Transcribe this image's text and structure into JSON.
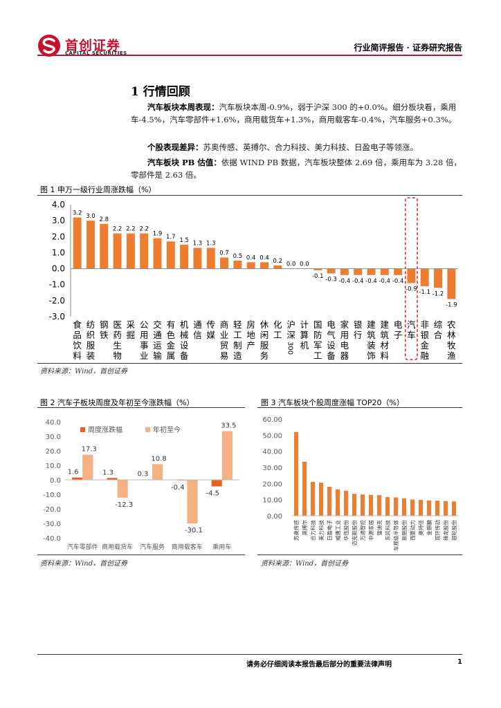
{
  "header": {
    "logo_cn": "首创证券",
    "logo_en": "CAPITAL SECURITIES",
    "report_type": "行业简评报告 · 证券研究报告"
  },
  "section": {
    "title": "1 行情回顾",
    "paragraphs": [
      {
        "lead": "汽车板块本周表现：",
        "text": "汽车板块本周-0.9%，弱于沪深 300 的+0.0%。细分板块看，乘用车-4.5%，汽车零部件+1.6%，商用载货车+1.3%，商用载客车-0.4%，汽车服务+0.3%。"
      },
      {
        "lead": "个股表现差异：",
        "text": "苏奥传感、英搏尔、合力科技、美力科技、日盈电子等领涨。"
      },
      {
        "lead": "汽车板块 PB 估值：",
        "text": "依据 WIND PB 数据，汽车板块整体 2.69 倍，乘用车为 3.28 倍，零部件是 2.63 倍。"
      }
    ]
  },
  "figures": {
    "fig1_caption": "图 1 申万一级行业周涨跌幅（%）",
    "fig2_caption": "图 2 汽车子板块周度及年初至今涨跌幅（%）",
    "fig3_caption": "图 3 汽车板块个股周度涨幅 TOP20（%）",
    "source": "资料来源：Wind，首创证券"
  },
  "chart_data": [
    {
      "type": "bar",
      "categories": [
        "食品饮料",
        "纺织服装",
        "钢铁",
        "医药生物",
        "采掘",
        "公用事业",
        "交通运输",
        "有色金属",
        "机械设备",
        "通信",
        "传媒",
        "商业贸易",
        "轻工制造",
        "房地产",
        "休闲服务",
        "化工",
        "沪深300",
        "计算机",
        "国防军工",
        "电气设备",
        "家用电器",
        "银行",
        "建筑装饰",
        "建筑材料",
        "电子",
        "汽车",
        "非银金融",
        "综合",
        "农林牧渔"
      ],
      "values": [
        3.2,
        3.0,
        2.8,
        2.2,
        2.2,
        2.2,
        1.9,
        1.7,
        1.5,
        1.3,
        1.3,
        0.7,
        0.5,
        0.4,
        0.4,
        0.2,
        0.0,
        0.0,
        -0.1,
        -0.3,
        -0.4,
        -0.4,
        -0.4,
        -0.4,
        -0.4,
        -0.9,
        -1.1,
        -1.2,
        -1.9
      ],
      "highlight": "汽车",
      "ylim": [
        -3.0,
        4.0
      ],
      "yticks": [
        "4.0",
        "3.0",
        "2.0",
        "1.0",
        "0.0",
        "-1.0",
        "-2.0",
        "-3.0"
      ],
      "color": "#ed7d31",
      "highlight_color": "#e02020"
    },
    {
      "type": "bar",
      "categories": [
        "汽车零部件",
        "商用载货车",
        "汽车服务",
        "商用载客车",
        "乘用车"
      ],
      "series": [
        {
          "name": "周度涨跌幅",
          "values": [
            1.6,
            1.3,
            0.3,
            -0.4,
            -4.5
          ],
          "labels": [
            "1.6",
            "1.3",
            "0.3",
            "-0.4",
            "-4.5"
          ],
          "color": "#e8601c"
        },
        {
          "name": "年初至今",
          "values": [
            17.3,
            -12.3,
            10.8,
            -30.1,
            33.5
          ],
          "labels": [
            "17.3",
            "-12.3",
            "10.8",
            "-30.1",
            "33.5"
          ],
          "color": "#f4b183"
        }
      ],
      "ylim": [
        -40,
        40
      ],
      "yticks": [
        "40.0",
        "30.0",
        "20.0",
        "10.0",
        "0.0",
        "-10.0",
        "-20.0",
        "-30.0",
        "-40.0"
      ]
    },
    {
      "type": "bar",
      "categories": [
        "苏奥传感",
        "英搏尔",
        "合力科技",
        "美力科技",
        "日盈电子",
        "威唐工业",
        "华伍股份",
        "迈克斯股份",
        "万通智控",
        "中源家居",
        "雷迪克",
        "东风科技",
        "车规级半导体",
        "新朋股份",
        "西菱动力",
        "奥特佳",
        "金麒麟",
        "双环传动",
        "锋龙股份",
        "银轮股份"
      ],
      "values": [
        51.9,
        33.5,
        21.0,
        20.5,
        18.0,
        16.4,
        15.5,
        13.6,
        13.2,
        13.0,
        12.8,
        11.6,
        11.4,
        10.8,
        10.1,
        9.8,
        9.5,
        9.3,
        9.1,
        8.9
      ],
      "ylim": [
        0,
        60
      ],
      "yticks": [
        "60.00",
        "50.00",
        "40.00",
        "30.00",
        "20.00",
        "10.00",
        "0.00"
      ],
      "color": "#ed7d31"
    }
  ],
  "footer": {
    "disclaimer": "请务必仔细阅读本报告最后部分的重要法律声明",
    "page": "1"
  }
}
